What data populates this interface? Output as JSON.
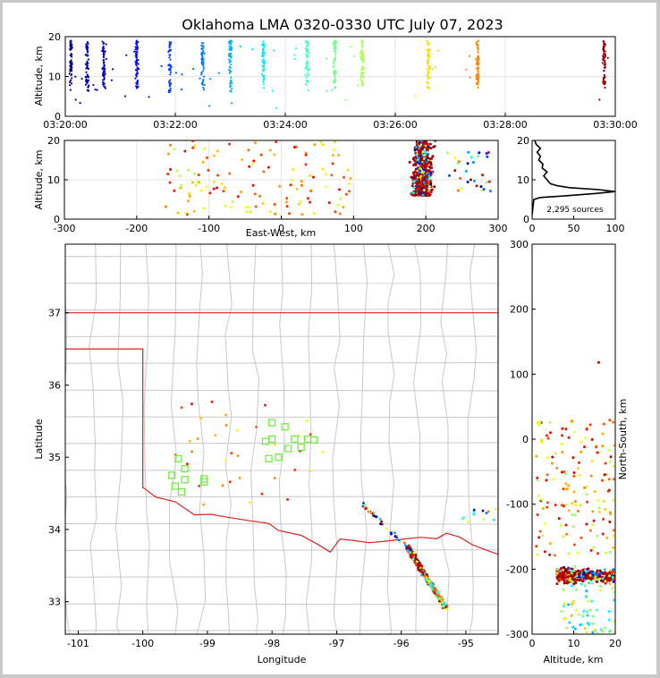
{
  "title": "Oklahoma LMA 0320-0330 UTC July 07, 2023",
  "chart_data": [
    {
      "panel": "altitude-vs-time",
      "type": "scatter",
      "ylabel": "Altitude, km",
      "xlabel": "",
      "xlim_minutes": [
        0,
        10
      ],
      "ylim": [
        0,
        20
      ],
      "x_tick_labels": [
        "03:20:00",
        "03:22:00",
        "03:24:00",
        "03:26:00",
        "03:28:00",
        "03:30:00"
      ],
      "y_tick_labels": [
        "0",
        "10",
        "20"
      ],
      "grid": true,
      "color_scale": "time (blue early, red late)",
      "flash_columns": [
        {
          "t_min": 0.1,
          "z_low": 6,
          "z_high": 19
        },
        {
          "t_min": 0.4,
          "z_low": 6,
          "z_high": 19
        },
        {
          "t_min": 0.7,
          "z_low": 7,
          "z_high": 19
        },
        {
          "t_min": 1.3,
          "z_low": 7,
          "z_high": 19
        },
        {
          "t_min": 1.9,
          "z_low": 6,
          "z_high": 19
        },
        {
          "t_min": 2.5,
          "z_low": 6,
          "z_high": 19
        },
        {
          "t_min": 3.0,
          "z_low": 6,
          "z_high": 19
        },
        {
          "t_min": 3.6,
          "z_low": 7,
          "z_high": 19
        },
        {
          "t_min": 4.4,
          "z_low": 6,
          "z_high": 19
        },
        {
          "t_min": 4.9,
          "z_low": 6,
          "z_high": 19
        },
        {
          "t_min": 5.4,
          "z_low": 7,
          "z_high": 19
        },
        {
          "t_min": 6.6,
          "z_low": 6,
          "z_high": 19
        },
        {
          "t_min": 7.5,
          "z_low": 7,
          "z_high": 19
        },
        {
          "t_min": 9.8,
          "z_low": 7,
          "z_high": 19
        }
      ]
    },
    {
      "panel": "altitude-vs-east-west",
      "type": "scatter",
      "xlabel": "East-West, km",
      "ylabel": "Altitude, km",
      "xlim": [
        -300,
        300
      ],
      "ylim": [
        0,
        20
      ],
      "x_tick_labels": [
        "-300",
        "-200",
        "-100",
        "0",
        "100",
        "200",
        "300"
      ],
      "y_tick_labels": [
        "0",
        "10",
        "20"
      ],
      "grid": true,
      "main_cluster": {
        "x_low": 160,
        "x_high": 230,
        "z_low": 6,
        "z_high": 20
      }
    },
    {
      "panel": "altitude-histogram",
      "type": "line",
      "xlim": [
        0,
        100
      ],
      "ylim": [
        0,
        20
      ],
      "x_tick_labels": [
        "0",
        "50",
        "100"
      ],
      "y_tick_labels": [
        "0",
        "10",
        "20"
      ],
      "annotation": "2,295 sources",
      "profile": [
        {
          "z": 1.0,
          "count": 0
        },
        {
          "z": 3.0,
          "count": 1
        },
        {
          "z": 5.0,
          "count": 2
        },
        {
          "z": 5.5,
          "count": 10
        },
        {
          "z": 6.0,
          "count": 45
        },
        {
          "z": 6.5,
          "count": 75
        },
        {
          "z": 7.0,
          "count": 100
        },
        {
          "z": 7.5,
          "count": 80
        },
        {
          "z": 8.0,
          "count": 45
        },
        {
          "z": 8.5,
          "count": 30
        },
        {
          "z": 9.0,
          "count": 22
        },
        {
          "z": 10.0,
          "count": 18
        },
        {
          "z": 11.0,
          "count": 14
        },
        {
          "z": 12.0,
          "count": 18
        },
        {
          "z": 13.0,
          "count": 12
        },
        {
          "z": 14.0,
          "count": 13
        },
        {
          "z": 15.0,
          "count": 8
        },
        {
          "z": 16.0,
          "count": 10
        },
        {
          "z": 17.0,
          "count": 6
        },
        {
          "z": 18.0,
          "count": 10
        },
        {
          "z": 19.0,
          "count": 5
        },
        {
          "z": 20.0,
          "count": 3
        }
      ]
    },
    {
      "panel": "plan-view-map",
      "type": "scatter",
      "xlabel": "Longitude",
      "ylabel": "Latitude",
      "xlim": [
        -101.2,
        -94.5
      ],
      "ylim": [
        32.55,
        37.95
      ],
      "x_tick_labels": [
        "-101",
        "-100",
        "-99",
        "-98",
        "-97",
        "-96",
        "-95"
      ],
      "y_tick_labels": [
        "33",
        "34",
        "35",
        "36",
        "37"
      ],
      "stations": [
        {
          "lon": -98.0,
          "lat": 35.48
        },
        {
          "lon": -97.8,
          "lat": 35.42
        },
        {
          "lon": -98.0,
          "lat": 35.25
        },
        {
          "lon": -97.65,
          "lat": 35.25
        },
        {
          "lon": -97.45,
          "lat": 35.25
        },
        {
          "lon": -97.35,
          "lat": 35.24
        },
        {
          "lon": -98.1,
          "lat": 35.22
        },
        {
          "lon": -97.75,
          "lat": 35.12
        },
        {
          "lon": -97.55,
          "lat": 35.14
        },
        {
          "lon": -97.9,
          "lat": 35.0
        },
        {
          "lon": -98.05,
          "lat": 34.98
        },
        {
          "lon": -99.45,
          "lat": 34.98
        },
        {
          "lon": -99.35,
          "lat": 34.84
        },
        {
          "lon": -99.55,
          "lat": 34.75
        },
        {
          "lon": -99.35,
          "lat": 34.69
        },
        {
          "lon": -99.5,
          "lat": 34.6
        },
        {
          "lon": -99.4,
          "lat": 34.52
        },
        {
          "lon": -99.05,
          "lat": 34.7
        },
        {
          "lon": -99.05,
          "lat": 34.66
        }
      ],
      "main_cluster": {
        "lon_from": -95.9,
        "lat_from": 33.75,
        "lon_to": -95.3,
        "lat_to": 32.9
      }
    },
    {
      "panel": "north-south-vs-altitude",
      "type": "scatter",
      "xlabel": "Altitude, km",
      "ylabel": "North-South, km",
      "xlim": [
        0,
        20
      ],
      "ylim": [
        -300,
        300
      ],
      "x_tick_labels": [
        "0",
        "10",
        "20"
      ],
      "y_tick_labels": [
        "-300",
        "-200",
        "-100",
        "0",
        "100",
        "200",
        "300"
      ],
      "main_cluster": {
        "z_low": 6,
        "z_high": 20,
        "y_low": -230,
        "y_high": -190
      }
    }
  ]
}
